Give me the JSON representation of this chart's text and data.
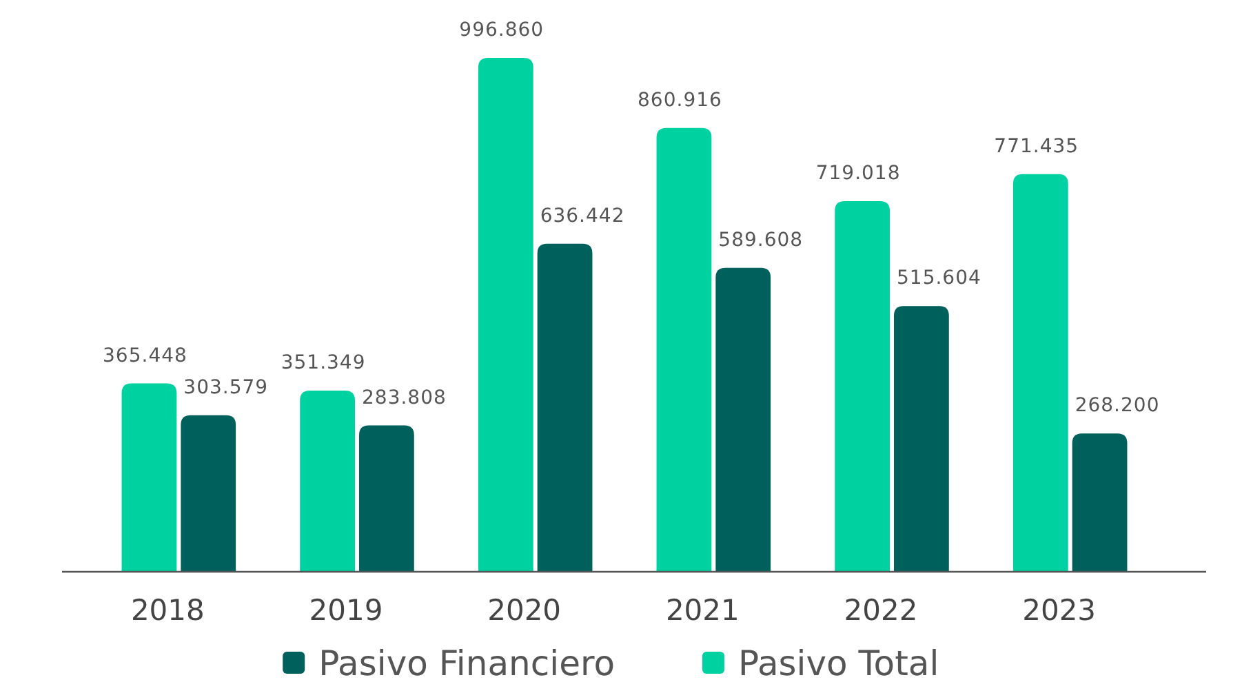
{
  "chart_data": {
    "type": "bar",
    "categories": [
      "2018",
      "2019",
      "2020",
      "2021",
      "2022",
      "2023"
    ],
    "series": [
      {
        "name": "Pasivo Total",
        "color": "#00d1a0",
        "values": [
          365448,
          351349,
          996860,
          860916,
          719018,
          771435
        ],
        "value_labels": [
          "365.448",
          "351.349",
          "996.860",
          "860.916",
          "719.018",
          "771.435"
        ]
      },
      {
        "name": "Pasivo Financiero",
        "color": "#00615c",
        "values": [
          303579,
          283808,
          636442,
          589608,
          515604,
          268200
        ],
        "value_labels": [
          "303.579",
          "283.808",
          "636.442",
          "589.608",
          "515.604",
          "268.200"
        ]
      }
    ],
    "legend": "bottom"
  }
}
